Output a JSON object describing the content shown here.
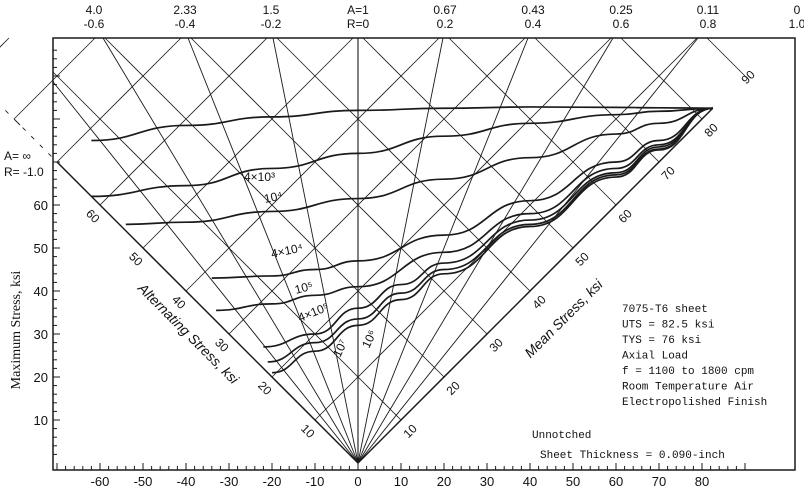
{
  "chart_data": {
    "type": "line",
    "title": "",
    "xlabel": "",
    "ylabel": "Maximum Stress, ksi",
    "alternating_axis_label": "Alternating Stress, ksi",
    "mean_axis_label": "Mean Stress, ksi",
    "x_ticks": [
      "-60",
      "-50",
      "-40",
      "-30",
      "-20",
      "-10",
      "0",
      "10",
      "20",
      "30",
      "40",
      "50",
      "60",
      "70",
      "80"
    ],
    "y_ticks": [
      "10",
      "20",
      "30",
      "40",
      "50",
      "60"
    ],
    "alternating_ticks": [
      "10",
      "20",
      "30",
      "40",
      "50",
      "60"
    ],
    "mean_ticks": [
      "10",
      "20",
      "30",
      "40",
      "50",
      "60",
      "70",
      "80",
      "90"
    ],
    "top_a_labels": [
      "4.0",
      "2.33",
      "1.5",
      "A=1",
      "0.67",
      "0.43",
      "0.25",
      "0.11",
      "0"
    ],
    "top_r_labels": [
      "-0.6",
      "-0.4",
      "-0.2",
      "R=0",
      "0.2",
      "0.4",
      "0.6",
      "0.8",
      "1.0"
    ],
    "left_a_label": "A= ∞",
    "left_r_label": "R= -1.0",
    "xlim": [
      -70,
      90
    ],
    "ylim": [
      0,
      90
    ],
    "series": [
      {
        "name": "4×10³",
        "x": [
          -62,
          -40,
          -20,
          0,
          20,
          40,
          60,
          70,
          82.5
        ],
        "y": [
          75,
          78.5,
          80.5,
          82,
          82.5,
          82.8,
          82.7,
          82.6,
          82.5
        ]
      },
      {
        "name": "10⁴",
        "x": [
          -62,
          -40,
          -20,
          0,
          20,
          40,
          60,
          70,
          82.5
        ],
        "y": [
          62,
          64.5,
          68.5,
          72,
          76,
          79,
          81,
          81.8,
          82.5
        ]
      },
      {
        "name": "4×10⁴",
        "x": [
          -54,
          -40,
          -20,
          0,
          20,
          40,
          60,
          70,
          82.5
        ],
        "y": [
          55.5,
          56,
          58.5,
          61.5,
          66,
          71,
          76.5,
          79,
          82.5
        ]
      },
      {
        "name": "10⁵",
        "x": [
          -34,
          -20,
          -10,
          0,
          20,
          40,
          60,
          70,
          82.5
        ],
        "y": [
          43,
          43.5,
          45,
          47,
          53,
          61,
          70,
          75,
          82.5
        ]
      },
      {
        "name": "4×10⁵",
        "x": [
          -33,
          -20,
          -10,
          0,
          20,
          40,
          60,
          70,
          82.5
        ],
        "y": [
          35.5,
          37,
          39,
          41,
          49,
          58,
          68.5,
          74,
          82.5
        ]
      },
      {
        "name": "10⁶",
        "x": [
          -22,
          -10,
          0,
          10,
          20,
          40,
          60,
          70,
          82.5
        ],
        "y": [
          27,
          30,
          36,
          41.5,
          46.5,
          56.5,
          67.5,
          73.5,
          82.5
        ]
      },
      {
        "name": "10⁷",
        "x": [
          -21,
          -10,
          0,
          10,
          20,
          40,
          60,
          70,
          82.5
        ],
        "y": [
          23.5,
          28,
          33.5,
          39.5,
          45,
          55.5,
          67,
          73,
          82.5
        ]
      },
      {
        "name": "",
        "x": [
          -20,
          -10,
          0,
          10,
          20,
          40,
          60,
          70,
          82.5
        ],
        "y": [
          21,
          26,
          32,
          38,
          44,
          55,
          66.5,
          72.8,
          82.5
        ]
      }
    ],
    "annotations": [
      "7075-T6 sheet",
      "UTS = 82.5 ksi",
      "TYS = 76 ksi",
      "Axial Load",
      "f = 1100 to 1800 cpm",
      "Room Temperature Air",
      "Electropolished Finish"
    ],
    "unnotched_label": "Unnotched",
    "thickness_label": "Sheet Thickness = 0.090-inch"
  }
}
